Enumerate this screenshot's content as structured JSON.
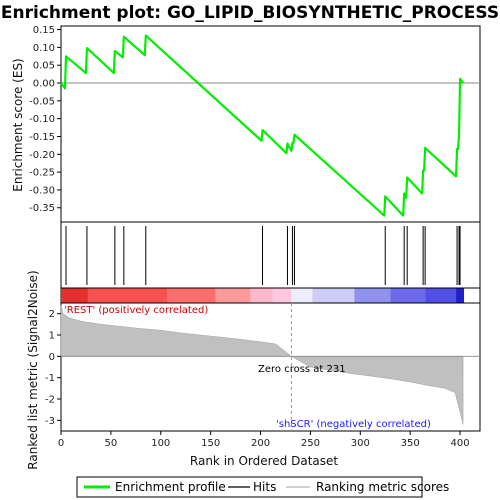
{
  "chart_data": {
    "type": "line",
    "title": "Enrichment plot: GO_LIPID_BIOSYNTHETIC_PROCESS",
    "xlabel": "Rank in Ordered Dataset",
    "ylabel_top": "Enrichment score (ES)",
    "ylabel_bottom": "Ranked list metric (Signal2Noise)",
    "xlim": [
      0,
      420
    ],
    "es_ylim": [
      -0.39,
      0.16
    ],
    "metric_ylim": [
      -3.5,
      2.5
    ],
    "x_ticks": [
      0,
      50,
      100,
      150,
      200,
      250,
      300,
      350,
      400
    ],
    "es_ticks": [
      0.15,
      0.1,
      0.05,
      0.0,
      -0.05,
      -0.1,
      -0.15,
      -0.2,
      -0.25,
      -0.3,
      -0.35
    ],
    "es_tick_labels": [
      "0.15",
      "0.10",
      "0.05",
      "0.00",
      "-0.05",
      "-0.10",
      "-0.15",
      "-0.20",
      "-0.25",
      "-0.30",
      "-0.35"
    ],
    "metric_ticks": [
      2,
      1,
      0,
      -1,
      -2,
      -3
    ],
    "hits": [
      5,
      26,
      54,
      63,
      85,
      202,
      227,
      232,
      234,
      325,
      344,
      347,
      363,
      365,
      397,
      399,
      400
    ],
    "enrichment_profile": {
      "name": "Enrichment profile",
      "color": "#00ee00",
      "x": [
        0,
        4,
        5,
        25,
        26,
        53,
        54,
        62,
        63,
        84,
        85,
        201,
        202,
        226,
        227,
        231,
        232,
        233,
        234,
        324,
        325,
        343,
        344,
        346,
        347,
        362,
        363,
        364,
        365,
        396,
        397,
        398,
        399,
        400,
        403
      ],
      "y": [
        0.0,
        -0.015,
        0.075,
        0.028,
        0.098,
        0.028,
        0.09,
        0.072,
        0.13,
        0.078,
        0.133,
        -0.162,
        -0.132,
        -0.197,
        -0.17,
        -0.19,
        -0.168,
        -0.168,
        -0.145,
        -0.372,
        -0.318,
        -0.372,
        -0.31,
        -0.322,
        -0.265,
        -0.31,
        -0.245,
        -0.245,
        -0.182,
        -0.262,
        -0.185,
        -0.185,
        -0.145,
        0.012,
        0.0
      ]
    },
    "ranked_metric": {
      "name": "Ranking metric scores",
      "color": "#c0c0c0",
      "x": [
        0,
        2,
        8,
        20,
        40,
        60,
        80,
        100,
        120,
        140,
        160,
        180,
        200,
        215,
        231,
        250,
        270,
        290,
        310,
        330,
        350,
        370,
        385,
        395,
        400,
        403
      ],
      "y": [
        2.4,
        2.0,
        1.8,
        1.65,
        1.5,
        1.4,
        1.3,
        1.22,
        1.1,
        1.0,
        0.9,
        0.8,
        0.68,
        0.58,
        0.0,
        -0.5,
        -0.65,
        -0.8,
        -0.92,
        -1.05,
        -1.2,
        -1.38,
        -1.5,
        -1.7,
        -2.6,
        -3.2
      ]
    },
    "zero_cross": 231,
    "zero_cross_label": "Zero cross at 231",
    "positive_label": "'REST' (positively correlated)",
    "negative_label": "'shSCR' (negatively correlated)",
    "color_band": [
      {
        "from": 0,
        "to": 27,
        "color": "#e53030"
      },
      {
        "from": 27,
        "to": 107,
        "color": "#f75252"
      },
      {
        "from": 107,
        "to": 155,
        "color": "#fc6e6e"
      },
      {
        "from": 155,
        "to": 190,
        "color": "#fd9a9a"
      },
      {
        "from": 190,
        "to": 212,
        "color": "#feb8cc"
      },
      {
        "from": 212,
        "to": 231,
        "color": "#ffc8e0"
      },
      {
        "from": 231,
        "to": 252,
        "color": "#ededfb"
      },
      {
        "from": 252,
        "to": 294,
        "color": "#cdcdf6"
      },
      {
        "from": 294,
        "to": 330,
        "color": "#9090ee"
      },
      {
        "from": 330,
        "to": 365,
        "color": "#6a6aea"
      },
      {
        "from": 365,
        "to": 396,
        "color": "#5050e6"
      },
      {
        "from": 396,
        "to": 404,
        "color": "#2020c8"
      }
    ],
    "legend": {
      "items": [
        {
          "label": "Enrichment profile",
          "color": "#00ee00"
        },
        {
          "label": "Hits",
          "color": "#000000"
        },
        {
          "label": "Ranking metric scores",
          "color": "#c0c0c0"
        }
      ]
    }
  }
}
